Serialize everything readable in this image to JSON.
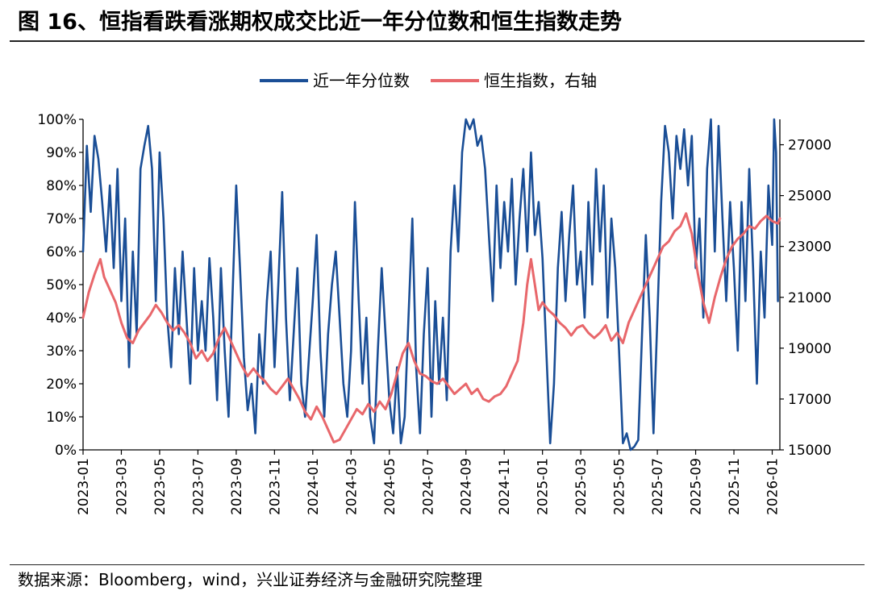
{
  "header": {
    "title": "图 16、恒指看跌看涨期权成交比近一年分位数和恒生指数走势"
  },
  "footer": {
    "source": "数据来源：Bloomberg，wind，兴业证券经济与金融研究院整理"
  },
  "colors": {
    "blue": "#1a4e96",
    "red": "#e8676b",
    "axis": "#000000"
  },
  "chart_data": {
    "type": "line",
    "title": "",
    "legend_position": "top-center",
    "x_ticks": [
      "2023-01",
      "2023-03",
      "2023-05",
      "2023-07",
      "2023-09",
      "2023-11",
      "2024-01",
      "2024-03",
      "2024-05",
      "2024-07",
      "2024-09",
      "2024-11",
      "2025-01",
      "2025-03",
      "2025-05",
      "2025-07",
      "2025-09",
      "2025-11",
      "2026-01"
    ],
    "x_range": [
      0,
      36.4
    ],
    "y_left": {
      "ticks": [
        "0%",
        "10%",
        "20%",
        "30%",
        "40%",
        "50%",
        "60%",
        "70%",
        "80%",
        "90%",
        "100%"
      ],
      "range": [
        0,
        100
      ]
    },
    "y_right": {
      "ticks": [
        "15000",
        "17000",
        "19000",
        "21000",
        "23000",
        "25000",
        "27000"
      ],
      "range": [
        15000,
        28000
      ]
    },
    "series": [
      {
        "name": "近一年分位数",
        "axis": "left",
        "color": "#1a4e96",
        "points": [
          [
            0,
            60
          ],
          [
            0.2,
            92
          ],
          [
            0.4,
            72
          ],
          [
            0.6,
            95
          ],
          [
            0.8,
            88
          ],
          [
            1.0,
            75
          ],
          [
            1.2,
            60
          ],
          [
            1.4,
            80
          ],
          [
            1.6,
            55
          ],
          [
            1.8,
            85
          ],
          [
            2.0,
            45
          ],
          [
            2.2,
            70
          ],
          [
            2.4,
            25
          ],
          [
            2.6,
            60
          ],
          [
            2.8,
            35
          ],
          [
            3.0,
            85
          ],
          [
            3.2,
            92
          ],
          [
            3.4,
            98
          ],
          [
            3.6,
            85
          ],
          [
            3.8,
            45
          ],
          [
            4.0,
            90
          ],
          [
            4.2,
            70
          ],
          [
            4.4,
            40
          ],
          [
            4.6,
            25
          ],
          [
            4.8,
            55
          ],
          [
            5.0,
            35
          ],
          [
            5.2,
            60
          ],
          [
            5.4,
            40
          ],
          [
            5.6,
            20
          ],
          [
            5.8,
            55
          ],
          [
            6.0,
            30
          ],
          [
            6.2,
            45
          ],
          [
            6.4,
            30
          ],
          [
            6.6,
            58
          ],
          [
            6.8,
            40
          ],
          [
            7.0,
            15
          ],
          [
            7.2,
            55
          ],
          [
            7.4,
            30
          ],
          [
            7.6,
            10
          ],
          [
            7.8,
            45
          ],
          [
            8.0,
            80
          ],
          [
            8.2,
            55
          ],
          [
            8.4,
            28
          ],
          [
            8.6,
            12
          ],
          [
            8.8,
            20
          ],
          [
            9.0,
            5
          ],
          [
            9.2,
            35
          ],
          [
            9.4,
            20
          ],
          [
            9.6,
            45
          ],
          [
            9.8,
            60
          ],
          [
            10.0,
            25
          ],
          [
            10.2,
            50
          ],
          [
            10.4,
            78
          ],
          [
            10.6,
            40
          ],
          [
            10.8,
            15
          ],
          [
            11.0,
            35
          ],
          [
            11.2,
            55
          ],
          [
            11.4,
            20
          ],
          [
            11.6,
            10
          ],
          [
            11.8,
            28
          ],
          [
            12.0,
            45
          ],
          [
            12.2,
            65
          ],
          [
            12.4,
            30
          ],
          [
            12.6,
            10
          ],
          [
            12.8,
            35
          ],
          [
            13.0,
            50
          ],
          [
            13.2,
            60
          ],
          [
            13.4,
            40
          ],
          [
            13.6,
            20
          ],
          [
            13.8,
            10
          ],
          [
            14.0,
            30
          ],
          [
            14.2,
            75
          ],
          [
            14.4,
            45
          ],
          [
            14.6,
            20
          ],
          [
            14.8,
            40
          ],
          [
            15.0,
            10
          ],
          [
            15.2,
            2
          ],
          [
            15.4,
            30
          ],
          [
            15.6,
            55
          ],
          [
            15.8,
            35
          ],
          [
            16.0,
            15
          ],
          [
            16.2,
            5
          ],
          [
            16.4,
            25
          ],
          [
            16.6,
            2
          ],
          [
            16.8,
            10
          ],
          [
            17.0,
            40
          ],
          [
            17.2,
            70
          ],
          [
            17.4,
            25
          ],
          [
            17.6,
            5
          ],
          [
            17.8,
            35
          ],
          [
            18.0,
            55
          ],
          [
            18.2,
            10
          ],
          [
            18.4,
            45
          ],
          [
            18.6,
            20
          ],
          [
            18.8,
            40
          ],
          [
            19.0,
            15
          ],
          [
            19.2,
            60
          ],
          [
            19.4,
            80
          ],
          [
            19.6,
            60
          ],
          [
            19.8,
            90
          ],
          [
            20.0,
            100
          ],
          [
            20.2,
            97
          ],
          [
            20.4,
            100
          ],
          [
            20.6,
            92
          ],
          [
            20.8,
            95
          ],
          [
            21.0,
            85
          ],
          [
            21.2,
            65
          ],
          [
            21.4,
            45
          ],
          [
            21.6,
            80
          ],
          [
            21.8,
            55
          ],
          [
            22.0,
            75
          ],
          [
            22.2,
            60
          ],
          [
            22.4,
            82
          ],
          [
            22.6,
            50
          ],
          [
            22.8,
            70
          ],
          [
            23.0,
            85
          ],
          [
            23.2,
            60
          ],
          [
            23.4,
            90
          ],
          [
            23.6,
            65
          ],
          [
            23.8,
            75
          ],
          [
            24.0,
            58
          ],
          [
            24.2,
            30
          ],
          [
            24.4,
            2
          ],
          [
            24.6,
            20
          ],
          [
            24.8,
            55
          ],
          [
            25.0,
            72
          ],
          [
            25.2,
            45
          ],
          [
            25.4,
            65
          ],
          [
            25.6,
            80
          ],
          [
            25.8,
            50
          ],
          [
            26.0,
            60
          ],
          [
            26.2,
            40
          ],
          [
            26.4,
            75
          ],
          [
            26.6,
            50
          ],
          [
            26.8,
            85
          ],
          [
            27.0,
            60
          ],
          [
            27.2,
            80
          ],
          [
            27.4,
            40
          ],
          [
            27.6,
            70
          ],
          [
            27.8,
            55
          ],
          [
            28.0,
            30
          ],
          [
            28.2,
            2
          ],
          [
            28.4,
            5
          ],
          [
            28.6,
            0
          ],
          [
            28.8,
            1
          ],
          [
            29.0,
            3
          ],
          [
            29.2,
            35
          ],
          [
            29.4,
            65
          ],
          [
            29.6,
            40
          ],
          [
            29.8,
            5
          ],
          [
            30.0,
            40
          ],
          [
            30.2,
            75
          ],
          [
            30.4,
            98
          ],
          [
            30.6,
            90
          ],
          [
            30.8,
            70
          ],
          [
            31.0,
            95
          ],
          [
            31.2,
            85
          ],
          [
            31.4,
            97
          ],
          [
            31.6,
            80
          ],
          [
            31.8,
            95
          ],
          [
            32.0,
            55
          ],
          [
            32.2,
            70
          ],
          [
            32.4,
            40
          ],
          [
            32.6,
            85
          ],
          [
            32.8,
            100
          ],
          [
            33.0,
            60
          ],
          [
            33.2,
            98
          ],
          [
            33.4,
            70
          ],
          [
            33.6,
            45
          ],
          [
            33.8,
            75
          ],
          [
            34.0,
            55
          ],
          [
            34.2,
            30
          ],
          [
            34.4,
            75
          ],
          [
            34.6,
            45
          ],
          [
            34.8,
            85
          ],
          [
            35.0,
            55
          ],
          [
            35.2,
            20
          ],
          [
            35.4,
            60
          ],
          [
            35.6,
            40
          ],
          [
            35.8,
            80
          ],
          [
            36.0,
            62
          ],
          [
            36.1,
            100
          ],
          [
            36.2,
            90
          ],
          [
            36.3,
            45
          ]
        ]
      },
      {
        "name": "恒生指数，右轴",
        "axis": "right",
        "color": "#e8676b",
        "points": [
          [
            0,
            20200
          ],
          [
            0.3,
            21200
          ],
          [
            0.6,
            21900
          ],
          [
            0.9,
            22500
          ],
          [
            1.1,
            21800
          ],
          [
            1.4,
            21300
          ],
          [
            1.7,
            20800
          ],
          [
            2.0,
            20000
          ],
          [
            2.3,
            19400
          ],
          [
            2.6,
            19200
          ],
          [
            2.9,
            19700
          ],
          [
            3.2,
            20000
          ],
          [
            3.5,
            20300
          ],
          [
            3.8,
            20700
          ],
          [
            4.1,
            20400
          ],
          [
            4.4,
            20000
          ],
          [
            4.7,
            19700
          ],
          [
            5.0,
            19900
          ],
          [
            5.3,
            19600
          ],
          [
            5.6,
            19200
          ],
          [
            5.9,
            18600
          ],
          [
            6.2,
            18900
          ],
          [
            6.5,
            18500
          ],
          [
            6.8,
            18800
          ],
          [
            7.1,
            19400
          ],
          [
            7.4,
            19800
          ],
          [
            7.7,
            19300
          ],
          [
            8.0,
            18800
          ],
          [
            8.3,
            18300
          ],
          [
            8.6,
            17900
          ],
          [
            8.9,
            18200
          ],
          [
            9.2,
            17900
          ],
          [
            9.5,
            17700
          ],
          [
            9.8,
            17400
          ],
          [
            10.1,
            17200
          ],
          [
            10.4,
            17500
          ],
          [
            10.7,
            17800
          ],
          [
            11.0,
            17400
          ],
          [
            11.3,
            17000
          ],
          [
            11.6,
            16500
          ],
          [
            11.9,
            16200
          ],
          [
            12.2,
            16700
          ],
          [
            12.5,
            16300
          ],
          [
            12.8,
            15800
          ],
          [
            13.1,
            15300
          ],
          [
            13.4,
            15400
          ],
          [
            13.7,
            15800
          ],
          [
            14.0,
            16200
          ],
          [
            14.3,
            16600
          ],
          [
            14.6,
            16400
          ],
          [
            14.9,
            16800
          ],
          [
            15.2,
            16500
          ],
          [
            15.5,
            16900
          ],
          [
            15.8,
            16600
          ],
          [
            16.1,
            17200
          ],
          [
            16.4,
            18000
          ],
          [
            16.7,
            18800
          ],
          [
            17.0,
            19200
          ],
          [
            17.3,
            18500
          ],
          [
            17.6,
            18000
          ],
          [
            17.9,
            17900
          ],
          [
            18.2,
            17700
          ],
          [
            18.5,
            17600
          ],
          [
            18.8,
            17800
          ],
          [
            19.1,
            17500
          ],
          [
            19.4,
            17200
          ],
          [
            19.7,
            17400
          ],
          [
            20.0,
            17600
          ],
          [
            20.3,
            17200
          ],
          [
            20.6,
            17400
          ],
          [
            20.9,
            17000
          ],
          [
            21.2,
            16900
          ],
          [
            21.5,
            17100
          ],
          [
            21.8,
            17200
          ],
          [
            22.1,
            17500
          ],
          [
            22.4,
            18000
          ],
          [
            22.7,
            18500
          ],
          [
            23.0,
            20000
          ],
          [
            23.2,
            21500
          ],
          [
            23.4,
            22500
          ],
          [
            23.6,
            21500
          ],
          [
            23.8,
            20500
          ],
          [
            24.0,
            20800
          ],
          [
            24.3,
            20500
          ],
          [
            24.6,
            20300
          ],
          [
            24.9,
            20000
          ],
          [
            25.2,
            19800
          ],
          [
            25.5,
            19500
          ],
          [
            25.8,
            19800
          ],
          [
            26.1,
            19900
          ],
          [
            26.4,
            19600
          ],
          [
            26.7,
            19400
          ],
          [
            27.0,
            19600
          ],
          [
            27.3,
            19900
          ],
          [
            27.6,
            19300
          ],
          [
            27.9,
            19600
          ],
          [
            28.2,
            19200
          ],
          [
            28.5,
            20000
          ],
          [
            28.8,
            20500
          ],
          [
            29.1,
            21000
          ],
          [
            29.4,
            21500
          ],
          [
            29.7,
            22000
          ],
          [
            30.0,
            22500
          ],
          [
            30.3,
            23000
          ],
          [
            30.6,
            23200
          ],
          [
            30.9,
            23600
          ],
          [
            31.2,
            23800
          ],
          [
            31.5,
            24300
          ],
          [
            31.8,
            23500
          ],
          [
            32.1,
            22000
          ],
          [
            32.4,
            20800
          ],
          [
            32.7,
            20000
          ],
          [
            33.0,
            21000
          ],
          [
            33.3,
            21800
          ],
          [
            33.6,
            22500
          ],
          [
            33.9,
            23000
          ],
          [
            34.2,
            23300
          ],
          [
            34.5,
            23500
          ],
          [
            34.8,
            23800
          ],
          [
            35.1,
            23700
          ],
          [
            35.4,
            24000
          ],
          [
            35.7,
            24200
          ],
          [
            36.0,
            24000
          ],
          [
            36.3,
            23900
          ],
          [
            36.4,
            24100
          ]
        ]
      }
    ]
  }
}
